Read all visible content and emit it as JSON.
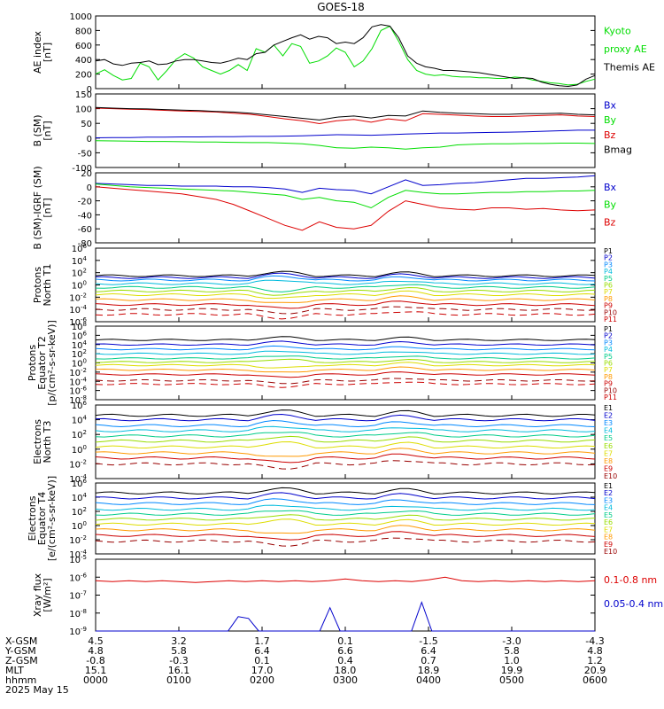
{
  "title": "GOES-18",
  "colors": {
    "black": "#000000",
    "green": "#00dd00",
    "red": "#dd0000",
    "blue": "#0000cc",
    "P": [
      "#000000",
      "#000000",
      "#0000cc",
      "#0088ff",
      "#00bbdd",
      "#00cc88",
      "#99dd00",
      "#dddd00",
      "#ff9900",
      "#cc0000",
      "#990000",
      "#cc0000"
    ],
    "E": [
      "#000000",
      "#000000",
      "#0000cc",
      "#0088ff",
      "#00bbdd",
      "#00cc88",
      "#99dd00",
      "#dddd00",
      "#ff9900",
      "#cc0000",
      "#990000"
    ]
  },
  "chart_data": [
    {
      "type": "line",
      "ylabel": "AE index\n[nT]",
      "ylim": [
        0,
        1000
      ],
      "yticks": [
        "0",
        "200",
        "400",
        "600",
        "800",
        "1000"
      ],
      "log": false,
      "legend": [
        {
          "text": "Kyoto",
          "color": "green"
        },
        {
          "text": "proxy AE",
          "color": "green"
        },
        {
          "text": "Themis AE",
          "color": "black"
        }
      ],
      "series": [
        {
          "name": "Kyoto proxy AE",
          "color": "green",
          "values": [
            200,
            260,
            180,
            120,
            140,
            350,
            300,
            120,
            250,
            400,
            480,
            420,
            300,
            250,
            200,
            250,
            330,
            250,
            550,
            500,
            600,
            450,
            620,
            580,
            350,
            380,
            450,
            560,
            500,
            300,
            380,
            550,
            800,
            860,
            650,
            400,
            250,
            200,
            180,
            190,
            170,
            160,
            160,
            150,
            150,
            140,
            140,
            160,
            150,
            120,
            100,
            80,
            70,
            50,
            60,
            100,
            130
          ]
        },
        {
          "name": "Themis AE",
          "color": "black",
          "values": [
            380,
            400,
            340,
            320,
            350,
            360,
            380,
            330,
            340,
            380,
            400,
            400,
            380,
            360,
            350,
            380,
            420,
            400,
            480,
            500,
            600,
            650,
            700,
            740,
            680,
            720,
            700,
            620,
            640,
            620,
            700,
            850,
            880,
            860,
            700,
            450,
            350,
            300,
            280,
            250,
            250,
            240,
            230,
            220,
            200,
            180,
            160,
            140,
            150,
            140,
            90,
            60,
            40,
            30,
            50,
            130,
            180
          ]
        }
      ]
    },
    {
      "type": "line",
      "ylabel": "B (SM)\n[nT]",
      "ylim": [
        -110,
        150
      ],
      "yticks": [
        "-100",
        "-50",
        "0",
        "50",
        "100",
        "150"
      ],
      "log": false,
      "legend": [
        {
          "text": "Bx",
          "color": "blue"
        },
        {
          "text": "By",
          "color": "green"
        },
        {
          "text": "Bz",
          "color": "red"
        },
        {
          "text": "Bmag",
          "color": "black"
        }
      ],
      "series": [
        {
          "name": "Bx",
          "color": "blue",
          "values": [
            -5,
            -4,
            -4,
            -3,
            -3,
            -2,
            -2,
            -1,
            -1,
            0,
            0,
            1,
            2,
            4,
            6,
            5,
            4,
            6,
            8,
            10,
            12,
            12,
            13,
            14,
            15,
            16,
            18,
            20,
            22,
            22
          ]
        },
        {
          "name": "By",
          "color": "green",
          "values": [
            -15,
            -16,
            -17,
            -18,
            -18,
            -19,
            -20,
            -20,
            -21,
            -22,
            -22,
            -24,
            -26,
            -32,
            -40,
            -42,
            -38,
            -40,
            -45,
            -40,
            -38,
            -30,
            -28,
            -26,
            -26,
            -25,
            -25,
            -24,
            -24,
            -25
          ]
        },
        {
          "name": "Bz",
          "color": "red",
          "values": [
            100,
            98,
            96,
            95,
            92,
            90,
            88,
            86,
            82,
            78,
            70,
            62,
            55,
            45,
            55,
            60,
            50,
            62,
            55,
            80,
            78,
            75,
            72,
            70,
            70,
            72,
            74,
            76,
            72,
            70
          ]
        },
        {
          "name": "Bmag",
          "color": "black",
          "values": [
            102,
            100,
            98,
            97,
            95,
            93,
            91,
            88,
            86,
            82,
            76,
            70,
            64,
            58,
            68,
            72,
            65,
            74,
            72,
            90,
            85,
            82,
            80,
            78,
            78,
            80,
            80,
            82,
            78,
            76
          ]
        }
      ]
    },
    {
      "type": "line",
      "ylabel": "B (SM)-IGRF (SM)\n[nT]",
      "ylim": [
        -80,
        20
      ],
      "yticks": [
        "-80",
        "-60",
        "-40",
        "-20",
        "0",
        "20"
      ],
      "log": false,
      "legend": [
        {
          "text": "Bx",
          "color": "blue"
        },
        {
          "text": "By",
          "color": "green"
        },
        {
          "text": "Bz",
          "color": "red"
        }
      ],
      "series": [
        {
          "name": "Bx",
          "color": "blue",
          "values": [
            5,
            4,
            3,
            2,
            2,
            1,
            1,
            1,
            0,
            0,
            -1,
            -3,
            -8,
            -2,
            -4,
            -5,
            -10,
            0,
            10,
            2,
            3,
            5,
            6,
            8,
            10,
            12,
            12,
            13,
            14,
            16
          ]
        },
        {
          "name": "By",
          "color": "green",
          "values": [
            4,
            2,
            0,
            -1,
            -2,
            -3,
            -4,
            -5,
            -6,
            -8,
            -10,
            -12,
            -18,
            -15,
            -20,
            -22,
            -30,
            -15,
            -5,
            -8,
            -10,
            -10,
            -9,
            -8,
            -8,
            -7,
            -7,
            -6,
            -6,
            -5
          ]
        },
        {
          "name": "Bz",
          "color": "red",
          "values": [
            0,
            -2,
            -4,
            -6,
            -8,
            -10,
            -14,
            -18,
            -25,
            -35,
            -45,
            -55,
            -62,
            -50,
            -58,
            -60,
            -55,
            -35,
            -20,
            -25,
            -30,
            -32,
            -33,
            -30,
            -30,
            -32,
            -31,
            -33,
            -34,
            -33
          ]
        }
      ]
    },
    {
      "type": "line",
      "ylabel": "Protons\nNorth T1",
      "ylim": [
        -6,
        6
      ],
      "yticks": [
        "10^-6",
        "10^-4",
        "10^-2",
        "10^0",
        "10^2",
        "10^4",
        "10^6"
      ],
      "log": true,
      "legend": [
        "P1",
        "P2",
        "P3",
        "P4",
        "P5",
        "P6",
        "P7",
        "P8",
        "P9",
        "P10",
        "P11"
      ],
      "levels": [
        1.5,
        1.2,
        0.8,
        0.2,
        -0.4,
        -1.0,
        -1.6,
        -2.4,
        -3.2,
        -4.0,
        -4.8
      ],
      "dashed_from": 9
    },
    {
      "type": "line",
      "ylabel": "Protons\nEquator T2\n[p/(cm²-s-sr-keV)]",
      "ylim": [
        -8,
        8
      ],
      "yticks": [
        "10^-8",
        "10^-6",
        "10^-4",
        "10^-2",
        "10^0",
        "10^2",
        "10^4",
        "10^6",
        "10^8"
      ],
      "log": true,
      "legend": [
        "P1",
        "P2",
        "P3",
        "P4",
        "P5",
        "P6",
        "P7",
        "P8",
        "P9",
        "P10",
        "P11"
      ],
      "levels": [
        5.0,
        4.0,
        3.0,
        2.0,
        1.0,
        0.2,
        -0.5,
        -1.5,
        -2.5,
        -3.8,
        -4.6
      ],
      "dashed_from": 9
    },
    {
      "type": "line",
      "ylabel": "Electrons\nNorth T3",
      "ylim": [
        -4,
        6
      ],
      "yticks": [
        "10^-4",
        "10^-2",
        "10^0",
        "10^2",
        "10^4",
        "10^6"
      ],
      "log": true,
      "legend": [
        "E1",
        "E2",
        "E3",
        "E4",
        "E5",
        "E6",
        "E7",
        "E8",
        "E9",
        "E10"
      ],
      "levels": [
        4.6,
        4.0,
        3.2,
        2.5,
        1.8,
        1.1,
        0.3,
        -0.5,
        -1.2,
        -2.0
      ],
      "dashed_from": 9
    },
    {
      "type": "line",
      "ylabel": "Electrons\nEquator T4\n[e/(cm²-s-sr-keV)]",
      "ylim": [
        -4,
        6
      ],
      "yticks": [
        "10^-4",
        "10^-2",
        "10^0",
        "10^2",
        "10^4",
        "10^6"
      ],
      "log": true,
      "legend": [
        "E1",
        "E2",
        "E3",
        "E4",
        "E5",
        "E6",
        "E7",
        "E8",
        "E9",
        "E10"
      ],
      "levels": [
        4.6,
        3.9,
        3.1,
        2.3,
        1.6,
        0.9,
        0.2,
        -0.6,
        -1.4,
        -2.2
      ],
      "dashed_from": 9
    },
    {
      "type": "line",
      "ylabel": "Xray flux\n[W/m²]",
      "ylim": [
        -9,
        -5
      ],
      "yticks": [
        "10^-9",
        "10^-8",
        "10^-7",
        "10^-6",
        "10^-5"
      ],
      "log": true,
      "legend": [
        {
          "text": "0.1-0.8 nm",
          "color": "red"
        },
        {
          "text": "0.05-0.4 nm",
          "color": "blue"
        }
      ],
      "series": [
        {
          "name": "0.1-0.8 nm",
          "color": "red",
          "values": [
            -6.2,
            -6.25,
            -6.2,
            -6.25,
            -6.2,
            -6.25,
            -6.3,
            -6.25,
            -6.2,
            -6.25,
            -6.2,
            -6.25,
            -6.2,
            -6.25,
            -6.2,
            -6.1,
            -6.2,
            -6.25,
            -6.2,
            -6.25,
            -6.15,
            -6.0,
            -6.2,
            -6.25,
            -6.2,
            -6.25,
            -6.2,
            -6.25,
            -6.2,
            -6.25,
            -6.2
          ]
        },
        {
          "name": "0.05-0.4 nm",
          "color": "blue",
          "values": [
            -9.5,
            -9.5,
            -9.5,
            -9.5,
            -9.5,
            -9.5,
            -9.5,
            -9.5,
            -9.5,
            -9.5,
            -9.5,
            -9.5,
            -9.5,
            -9.5,
            -8.2,
            -8.3,
            -9.5,
            -9.5,
            -9.5,
            -9.5,
            -9.5,
            -9.5,
            -9.5,
            -7.7,
            -9.5,
            -9.5,
            -9.5,
            -9.5,
            -9.5,
            -9.5,
            -9.5,
            -9.5,
            -7.4,
            -9.5,
            -9.5,
            -9.5,
            -9.5,
            -9.5,
            -9.5,
            -9.5,
            -9.5,
            -9.5,
            -9.5,
            -9.5,
            -9.5,
            -9.5,
            -9.5,
            -9.5,
            -9.5,
            -9.5
          ]
        }
      ]
    }
  ],
  "x_axis": {
    "rows": [
      {
        "label": "X-GSM",
        "values": [
          "4.5",
          "3.2",
          "1.7",
          "0.1",
          "-1.5",
          "-3.0",
          "-4.3"
        ]
      },
      {
        "label": "Y-GSM",
        "values": [
          "4.8",
          "5.8",
          "6.4",
          "6.6",
          "6.4",
          "5.8",
          "4.8"
        ]
      },
      {
        "label": "Z-GSM",
        "values": [
          "-0.8",
          "-0.3",
          "0.1",
          "0.4",
          "0.7",
          "1.0",
          "1.2"
        ]
      },
      {
        "label": "MLT",
        "values": [
          "15.1",
          "16.1",
          "17.0",
          "18.0",
          "18.9",
          "19.9",
          "20.9"
        ]
      },
      {
        "label": "hhmm",
        "values": [
          "0000",
          "0100",
          "0200",
          "0300",
          "0400",
          "0500",
          "0600"
        ]
      }
    ],
    "date": "2025 May 15"
  }
}
